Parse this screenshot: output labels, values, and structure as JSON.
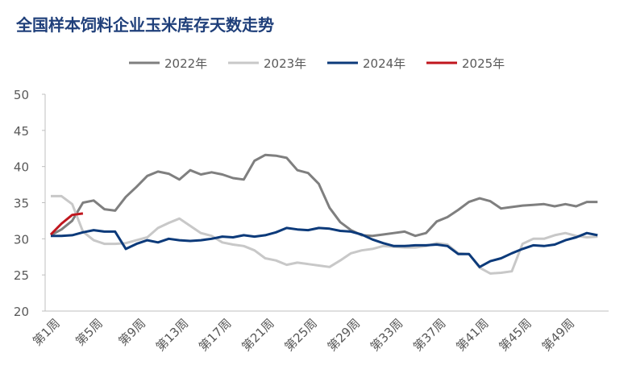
{
  "chart_data": {
    "type": "line",
    "title": "全国样本饲料企业玉米库存天数走势",
    "categories": [
      "第1周",
      null,
      null,
      null,
      "第5周",
      null,
      null,
      null,
      "第9周",
      null,
      null,
      null,
      "第13周",
      null,
      null,
      null,
      "第17周",
      null,
      null,
      null,
      "第21周",
      null,
      null,
      null,
      "第25周",
      null,
      null,
      null,
      "第29周",
      null,
      null,
      null,
      "第33周",
      null,
      null,
      null,
      "第37周",
      null,
      null,
      null,
      "第41周",
      null,
      null,
      null,
      "第45周",
      null,
      null,
      null,
      "第49周",
      null,
      null,
      null
    ],
    "series": [
      {
        "name": "2022年",
        "color": "#7f7f7f",
        "values": [
          30.5,
          31.3,
          32.5,
          35.0,
          35.3,
          34.1,
          33.9,
          35.8,
          37.2,
          38.7,
          39.3,
          39.0,
          38.2,
          39.5,
          38.9,
          39.2,
          38.9,
          38.4,
          38.2,
          40.8,
          41.6,
          41.5,
          41.2,
          39.5,
          39.1,
          37.6,
          34.3,
          32.3,
          31.2,
          30.5,
          30.4,
          30.6,
          30.8,
          31.0,
          30.4,
          30.8,
          32.4,
          33.0,
          34.0,
          35.1,
          35.6,
          35.2,
          34.2,
          34.4,
          34.6,
          34.7,
          34.8,
          34.5,
          34.8,
          34.5,
          35.1,
          35.1
        ]
      },
      {
        "name": "2023年",
        "color": "#c8c8c8",
        "values": [
          35.9,
          35.9,
          34.8,
          31.0,
          29.8,
          29.3,
          29.3,
          29.4,
          29.8,
          30.2,
          31.5,
          32.2,
          32.8,
          31.8,
          30.8,
          30.4,
          29.5,
          29.2,
          29.0,
          28.4,
          27.3,
          27.0,
          26.4,
          26.7,
          26.5,
          26.3,
          26.1,
          27.0,
          28.0,
          28.4,
          28.6,
          29.0,
          28.9,
          28.8,
          28.8,
          29.0,
          29.4,
          29.2,
          28.0,
          27.9,
          26.0,
          25.2,
          25.3,
          25.5,
          29.3,
          30.0,
          30.0,
          30.5,
          30.8,
          30.4,
          30.2,
          30.3
        ]
      },
      {
        "name": "2024年",
        "color": "#0c3a7a",
        "values": [
          30.4,
          30.4,
          30.5,
          30.9,
          31.2,
          31.0,
          31.0,
          28.6,
          29.3,
          29.8,
          29.5,
          30.0,
          29.8,
          29.7,
          29.8,
          30.0,
          30.3,
          30.2,
          30.5,
          30.3,
          30.5,
          30.9,
          31.5,
          31.3,
          31.2,
          31.5,
          31.4,
          31.1,
          31.0,
          30.6,
          29.9,
          29.4,
          29.0,
          29.0,
          29.1,
          29.1,
          29.2,
          29.0,
          27.9,
          27.9,
          26.1,
          26.9,
          27.3,
          28.0,
          28.6,
          29.1,
          29.0,
          29.2,
          29.8,
          30.2,
          30.8,
          30.5
        ]
      },
      {
        "name": "2025年",
        "color": "#c0161e",
        "values": [
          30.6,
          32.1,
          33.3,
          33.5,
          null,
          null,
          null,
          null,
          null,
          null,
          null,
          null,
          null,
          null,
          null,
          null,
          null,
          null,
          null,
          null,
          null,
          null,
          null,
          null,
          null,
          null,
          null,
          null,
          null,
          null,
          null,
          null,
          null,
          null,
          null,
          null,
          null,
          null,
          null,
          null,
          null,
          null,
          null,
          null,
          null,
          null,
          null,
          null,
          null,
          null,
          null,
          null
        ]
      }
    ],
    "ylim": [
      20,
      50
    ],
    "yticks": [
      20,
      25,
      30,
      35,
      40,
      45,
      50
    ],
    "grid": false
  }
}
